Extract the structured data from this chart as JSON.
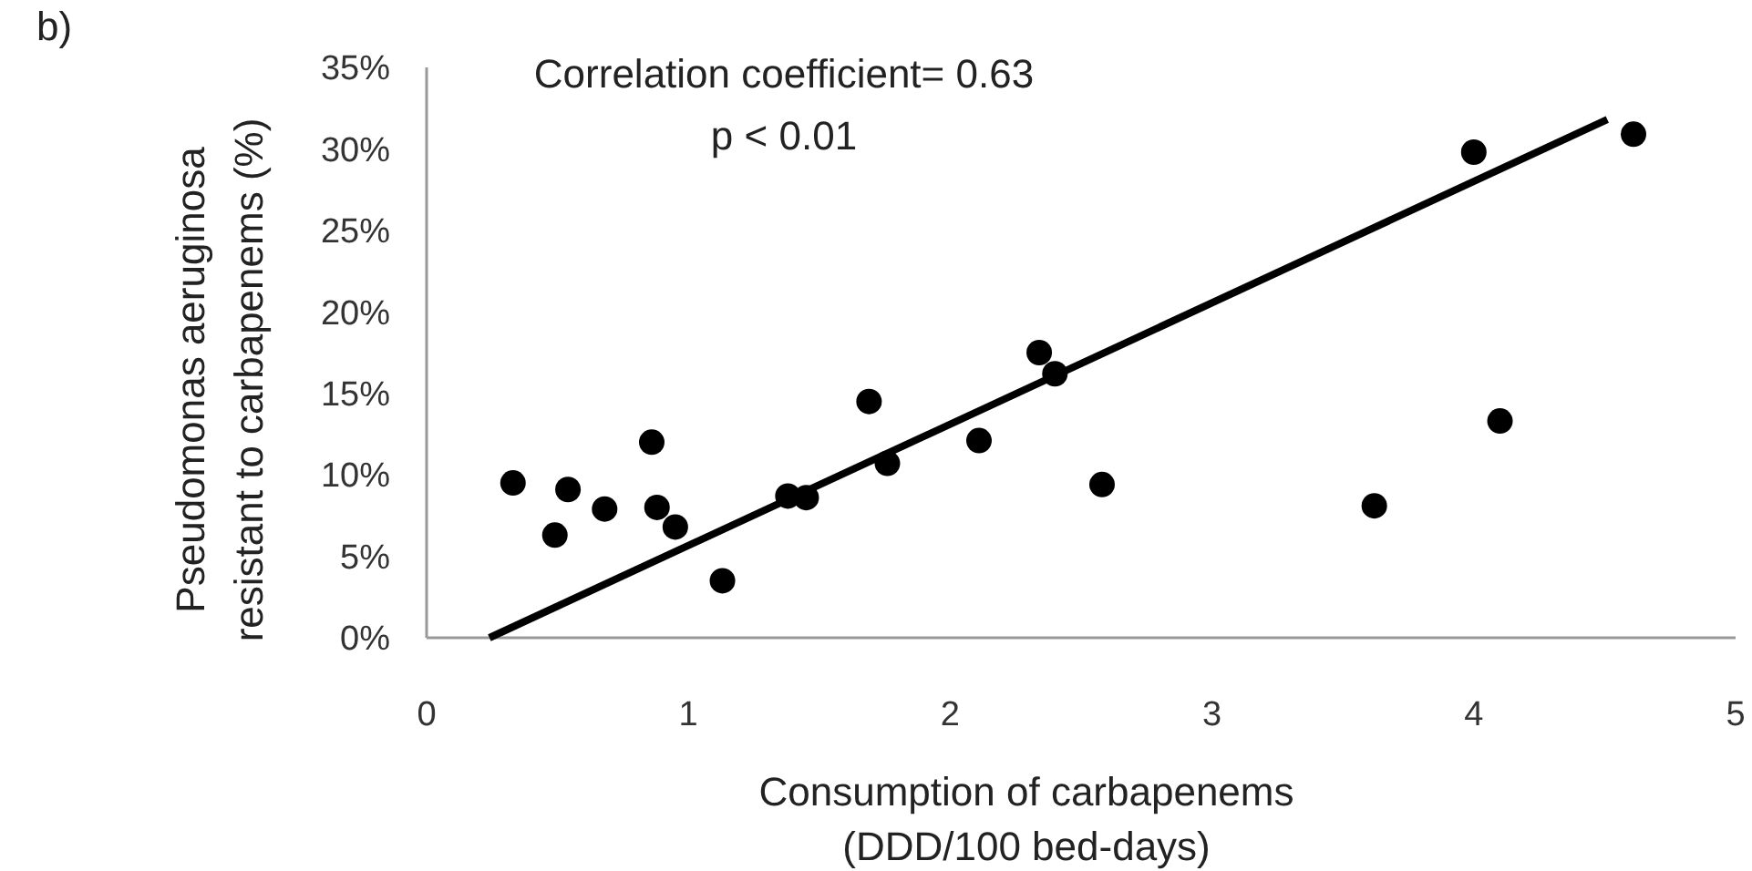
{
  "chart_data": {
    "type": "scatter",
    "xlabel": "Consumption of carbapenems\n(DDD/100 bed-days)",
    "ylabel": "Pseudomonas aeruginosa\nresistant to carbapenems (%)",
    "annotations": [
      "b)",
      "Correlation coefficient= 0.63",
      "p < 0.01"
    ],
    "xlim": [
      0,
      5
    ],
    "xticks": [
      0,
      1,
      2,
      3,
      4,
      5
    ],
    "ylim": [
      0,
      35
    ],
    "yticks": [
      {
        "value": 0,
        "label": "0%"
      },
      {
        "value": 5,
        "label": "5%"
      },
      {
        "value": 10,
        "label": "10%"
      },
      {
        "value": 15,
        "label": "15%"
      },
      {
        "value": 20,
        "label": "20%"
      },
      {
        "value": 25,
        "label": "25%"
      },
      {
        "value": 30,
        "label": "30%"
      },
      {
        "value": 35,
        "label": "35%"
      }
    ],
    "grid": false,
    "marker": "circle",
    "series": [
      {
        "color": "#000000",
        "x": [
          0.33,
          0.49,
          0.54,
          0.68,
          0.86,
          0.88,
          0.95,
          1.13,
          1.38,
          1.45,
          1.69,
          1.76,
          2.11,
          2.34,
          2.4,
          2.58,
          3.62,
          4.0,
          4.1,
          4.61
        ],
        "values": [
          9.5,
          6.3,
          9.1,
          7.9,
          12.0,
          8.0,
          6.8,
          3.5,
          8.7,
          8.6,
          14.5,
          10.7,
          12.1,
          17.5,
          16.2,
          9.4,
          8.1,
          29.8,
          13.3,
          30.9
        ]
      },
      {
        "type": "line",
        "color": "#000000",
        "line_style": "solid",
        "marker": "none",
        "x": [
          0.24,
          4.51
        ],
        "values": [
          0,
          31.8
        ]
      }
    ]
  }
}
